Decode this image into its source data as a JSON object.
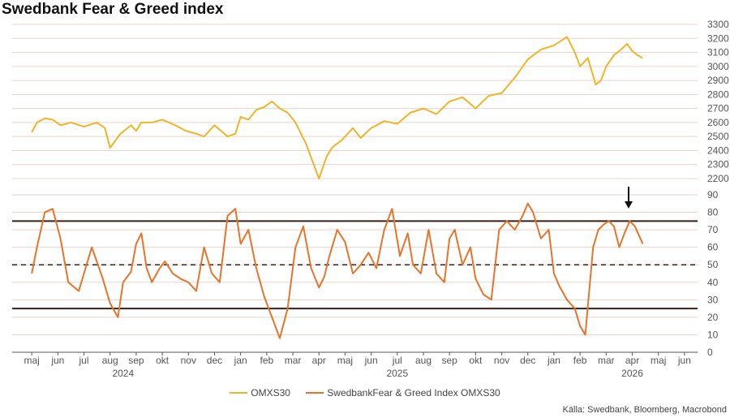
{
  "title": "Swedbank Fear & Greed index",
  "source": "Källa: Swedbank, Bloomberg, Macrobond",
  "colors": {
    "omx": "#f0b428",
    "fg": "#e8742a",
    "band": "#3a1e1a",
    "grid": "#e9d3cb",
    "axis": "#555555"
  },
  "chart_data": [
    {
      "type": "line",
      "id": "omx",
      "y_ticks": [
        "3300",
        "3200",
        "3100",
        "3000",
        "2900",
        "2800",
        "2700",
        "2600",
        "2500",
        "2400",
        "2300",
        "2200"
      ],
      "ylim": [
        2200,
        3300
      ],
      "series": [
        {
          "name": "OMXS30",
          "x": [
            0,
            0.2,
            0.5,
            0.8,
            1.1,
            1.5,
            2.0,
            2.5,
            2.8,
            3.0,
            3.4,
            3.8,
            4.0,
            4.2,
            4.6,
            5.0,
            5.5,
            5.9,
            6.3,
            6.6,
            7.0,
            7.5,
            7.8,
            8.0,
            8.3,
            8.6,
            8.9,
            9.2,
            9.5,
            9.8,
            10.1,
            10.5,
            11.0,
            11.3,
            11.5,
            11.7,
            11.85,
            12.0,
            12.3,
            12.6,
            13.0,
            13.5,
            14.0,
            14.5,
            15.0,
            15.5,
            16.0,
            16.5,
            17.0,
            17.5,
            18.0,
            18.5,
            19.0,
            19.5,
            20.0,
            20.5,
            20.8,
            21.0,
            21.3,
            21.6,
            21.8,
            22.0,
            22.3,
            22.5,
            22.8,
            23.0,
            23.2,
            23.4
          ],
          "values": [
            2530,
            2600,
            2630,
            2620,
            2580,
            2600,
            2570,
            2600,
            2560,
            2420,
            2520,
            2580,
            2540,
            2600,
            2600,
            2620,
            2580,
            2540,
            2520,
            2500,
            2580,
            2500,
            2520,
            2640,
            2620,
            2690,
            2710,
            2750,
            2700,
            2670,
            2600,
            2450,
            2200,
            2360,
            2420,
            2450,
            2470,
            2500,
            2560,
            2490,
            2560,
            2610,
            2590,
            2670,
            2700,
            2660,
            2750,
            2780,
            2700,
            2790,
            2810,
            2920,
            3050,
            3120,
            3150,
            3210,
            3100,
            3000,
            3060,
            2870,
            2900,
            3000,
            3080,
            3110,
            3160,
            3110,
            3080,
            3060
          ]
        }
      ]
    },
    {
      "type": "line",
      "id": "fg",
      "y_ticks": [
        "90",
        "80",
        "70",
        "60",
        "50",
        "40",
        "30",
        "20",
        "10",
        "0"
      ],
      "ylim": [
        0,
        90
      ],
      "series": [
        {
          "name": "SwedbankFear & Greed Index OMXS30",
          "x": [
            0,
            0.2,
            0.5,
            0.8,
            1.1,
            1.4,
            1.8,
            2.0,
            2.3,
            2.7,
            3.0,
            3.3,
            3.5,
            3.8,
            4.0,
            4.2,
            4.4,
            4.6,
            4.9,
            5.1,
            5.4,
            5.7,
            6.0,
            6.3,
            6.6,
            6.9,
            7.2,
            7.5,
            7.8,
            8.0,
            8.3,
            8.6,
            8.9,
            9.2,
            9.5,
            9.8,
            10.1,
            10.4,
            10.7,
            11.0,
            11.2,
            11.4,
            11.7,
            12.0,
            12.3,
            12.6,
            12.9,
            13.2,
            13.5,
            13.8,
            14.1,
            14.4,
            14.6,
            14.9,
            15.2,
            15.5,
            15.8,
            16.0,
            16.2,
            16.5,
            16.8,
            17.0,
            17.3,
            17.6,
            17.9,
            18.2,
            18.5,
            18.8,
            19.0,
            19.2,
            19.5,
            19.8,
            20.0,
            20.2,
            20.5,
            20.8,
            21.0,
            21.2,
            21.5,
            21.7,
            21.9,
            22.1,
            22.3,
            22.5,
            22.7,
            22.9,
            23.1,
            23.4
          ],
          "values": [
            45,
            60,
            80,
            82,
            65,
            40,
            35,
            45,
            60,
            43,
            28,
            20,
            40,
            46,
            62,
            68,
            48,
            40,
            48,
            52,
            45,
            42,
            40,
            35,
            60,
            45,
            40,
            78,
            82,
            62,
            70,
            48,
            32,
            20,
            8,
            25,
            60,
            72,
            48,
            37,
            43,
            55,
            70,
            63,
            45,
            50,
            57,
            48,
            70,
            82,
            55,
            68,
            50,
            45,
            70,
            45,
            40,
            65,
            70,
            50,
            60,
            42,
            33,
            30,
            70,
            75,
            70,
            78,
            85,
            80,
            65,
            70,
            45,
            38,
            30,
            25,
            15,
            10,
            60,
            70,
            73,
            75,
            72,
            60,
            68,
            75,
            72,
            62
          ]
        }
      ],
      "reference_lines": [
        75,
        50,
        25
      ]
    }
  ],
  "x_axis": {
    "months": [
      "maj",
      "jun",
      "jul",
      "aug",
      "sep",
      "okt",
      "nov",
      "dec",
      "jan",
      "feb",
      "mar",
      "apr",
      "maj",
      "jun",
      "jul",
      "aug",
      "sep",
      "okt",
      "nov",
      "dec",
      "jan",
      "feb",
      "mar",
      "apr",
      "maj",
      "jun"
    ],
    "years": [
      {
        "label": "2024",
        "index": 3.5
      },
      {
        "label": "2025",
        "index": 14.0
      },
      {
        "label": "2026",
        "index": 23.0
      }
    ]
  },
  "legend": {
    "omx_label": "OMXS30",
    "fg_label": "SwedbankFear & Greed Index OMXS30"
  }
}
